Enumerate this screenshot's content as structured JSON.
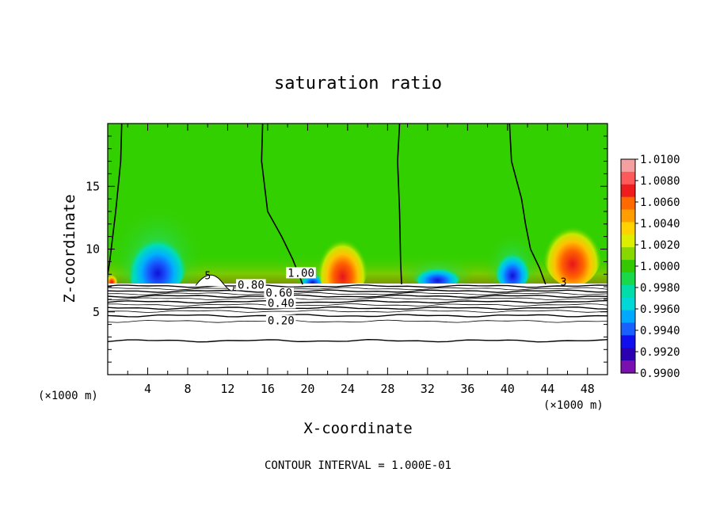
{
  "chart_data": {
    "type": "heatmap",
    "title": "saturation ratio",
    "xlabel": "X-coordinate",
    "ylabel": "Z-coordinate",
    "x_unit_left": "(×1000 m)",
    "x_unit_right": "(×1000 m)",
    "xlim": [
      0,
      50
    ],
    "ylim": [
      0,
      20
    ],
    "x_ticks": [
      4,
      8,
      12,
      16,
      20,
      24,
      28,
      32,
      36,
      40,
      44,
      48
    ],
    "y_ticks": [
      5,
      10,
      15
    ],
    "footer": "CONTOUR INTERVAL = 1.000E-01",
    "colorbar": {
      "labels": [
        "1.0100",
        "1.0080",
        "1.0060",
        "1.0040",
        "1.0020",
        "1.0000",
        "0.9980",
        "0.9960",
        "0.9940",
        "0.9920",
        "0.9900"
      ],
      "colors": [
        "#f5a0a0",
        "#ff5a5a",
        "#ee1c1c",
        "#ff6a00",
        "#ff9e00",
        "#ffd200",
        "#ddee00",
        "#88d800",
        "#33c800",
        "#19d94a",
        "#00dda8",
        "#00d8d8",
        "#00a8ff",
        "#1860ff",
        "#1010ee",
        "#2a00b0",
        "#7a10b0"
      ]
    },
    "contour_labels": [
      {
        "text": "1.00",
        "x": 18.0,
        "z": 7.8
      },
      {
        "text": "0.80",
        "x": 13.0,
        "z": 6.85
      },
      {
        "text": "0.60",
        "x": 15.8,
        "z": 6.2
      },
      {
        "text": "0.40",
        "x": 16.0,
        "z": 5.4
      },
      {
        "text": "0.20",
        "x": 16.0,
        "z": 4.0
      }
    ],
    "contour_tick_labels": [
      {
        "text": "5",
        "x": 9.7,
        "z": 7.6
      },
      {
        "text": "3",
        "x": 45.3,
        "z": 7.1
      }
    ],
    "saturation_lines": [
      [
        [
          1.4,
          20
        ],
        [
          1.3,
          17
        ],
        [
          0.8,
          13
        ],
        [
          0.2,
          9
        ],
        [
          0,
          8
        ]
      ],
      [
        [
          15.5,
          20
        ],
        [
          15.4,
          17
        ],
        [
          16,
          13
        ],
        [
          17.4,
          11
        ],
        [
          18.5,
          9.2
        ],
        [
          19,
          8.2
        ],
        [
          19.5,
          7.2
        ]
      ],
      [
        [
          29.2,
          20
        ],
        [
          29.0,
          17
        ],
        [
          29.2,
          13
        ],
        [
          29.3,
          9
        ],
        [
          29.4,
          7.2
        ]
      ],
      [
        [
          40.2,
          20
        ],
        [
          40.4,
          17
        ],
        [
          41.4,
          14
        ],
        [
          41.8,
          12
        ],
        [
          42.3,
          10
        ],
        [
          43.2,
          8.5
        ],
        [
          43.8,
          7.2
        ]
      ]
    ],
    "subsaturated_patches": [
      {
        "x": 4.4,
        "z": 8.3,
        "rx": 2.4,
        "rz": 1.8,
        "level": "0.9920"
      },
      {
        "x": 5.0,
        "z": 9.2,
        "rx": 3.0,
        "rz": 2.8,
        "level": "0.9960"
      },
      {
        "x": 33.0,
        "z": 7.9,
        "rx": 2.4,
        "rz": 1.0,
        "level": "0.9920"
      },
      {
        "x": 40.5,
        "z": 8.6,
        "rx": 1.8,
        "rz": 1.8,
        "level": "0.9940"
      },
      {
        "x": 20.5,
        "z": 7.6,
        "rx": 1.2,
        "rz": 0.6,
        "level": "0.9920"
      }
    ],
    "supersaturated_patches": [
      {
        "x": 23.5,
        "z": 9.0,
        "rx": 2.6,
        "rz": 3.0,
        "level": "1.0060"
      },
      {
        "x": 46.5,
        "z": 10.0,
        "rx": 3.0,
        "rz": 3.0,
        "level": "1.0060"
      },
      {
        "x": 0.4,
        "z": 7.6,
        "rx": 0.6,
        "rz": 0.6,
        "level": "1.0040"
      }
    ]
  }
}
